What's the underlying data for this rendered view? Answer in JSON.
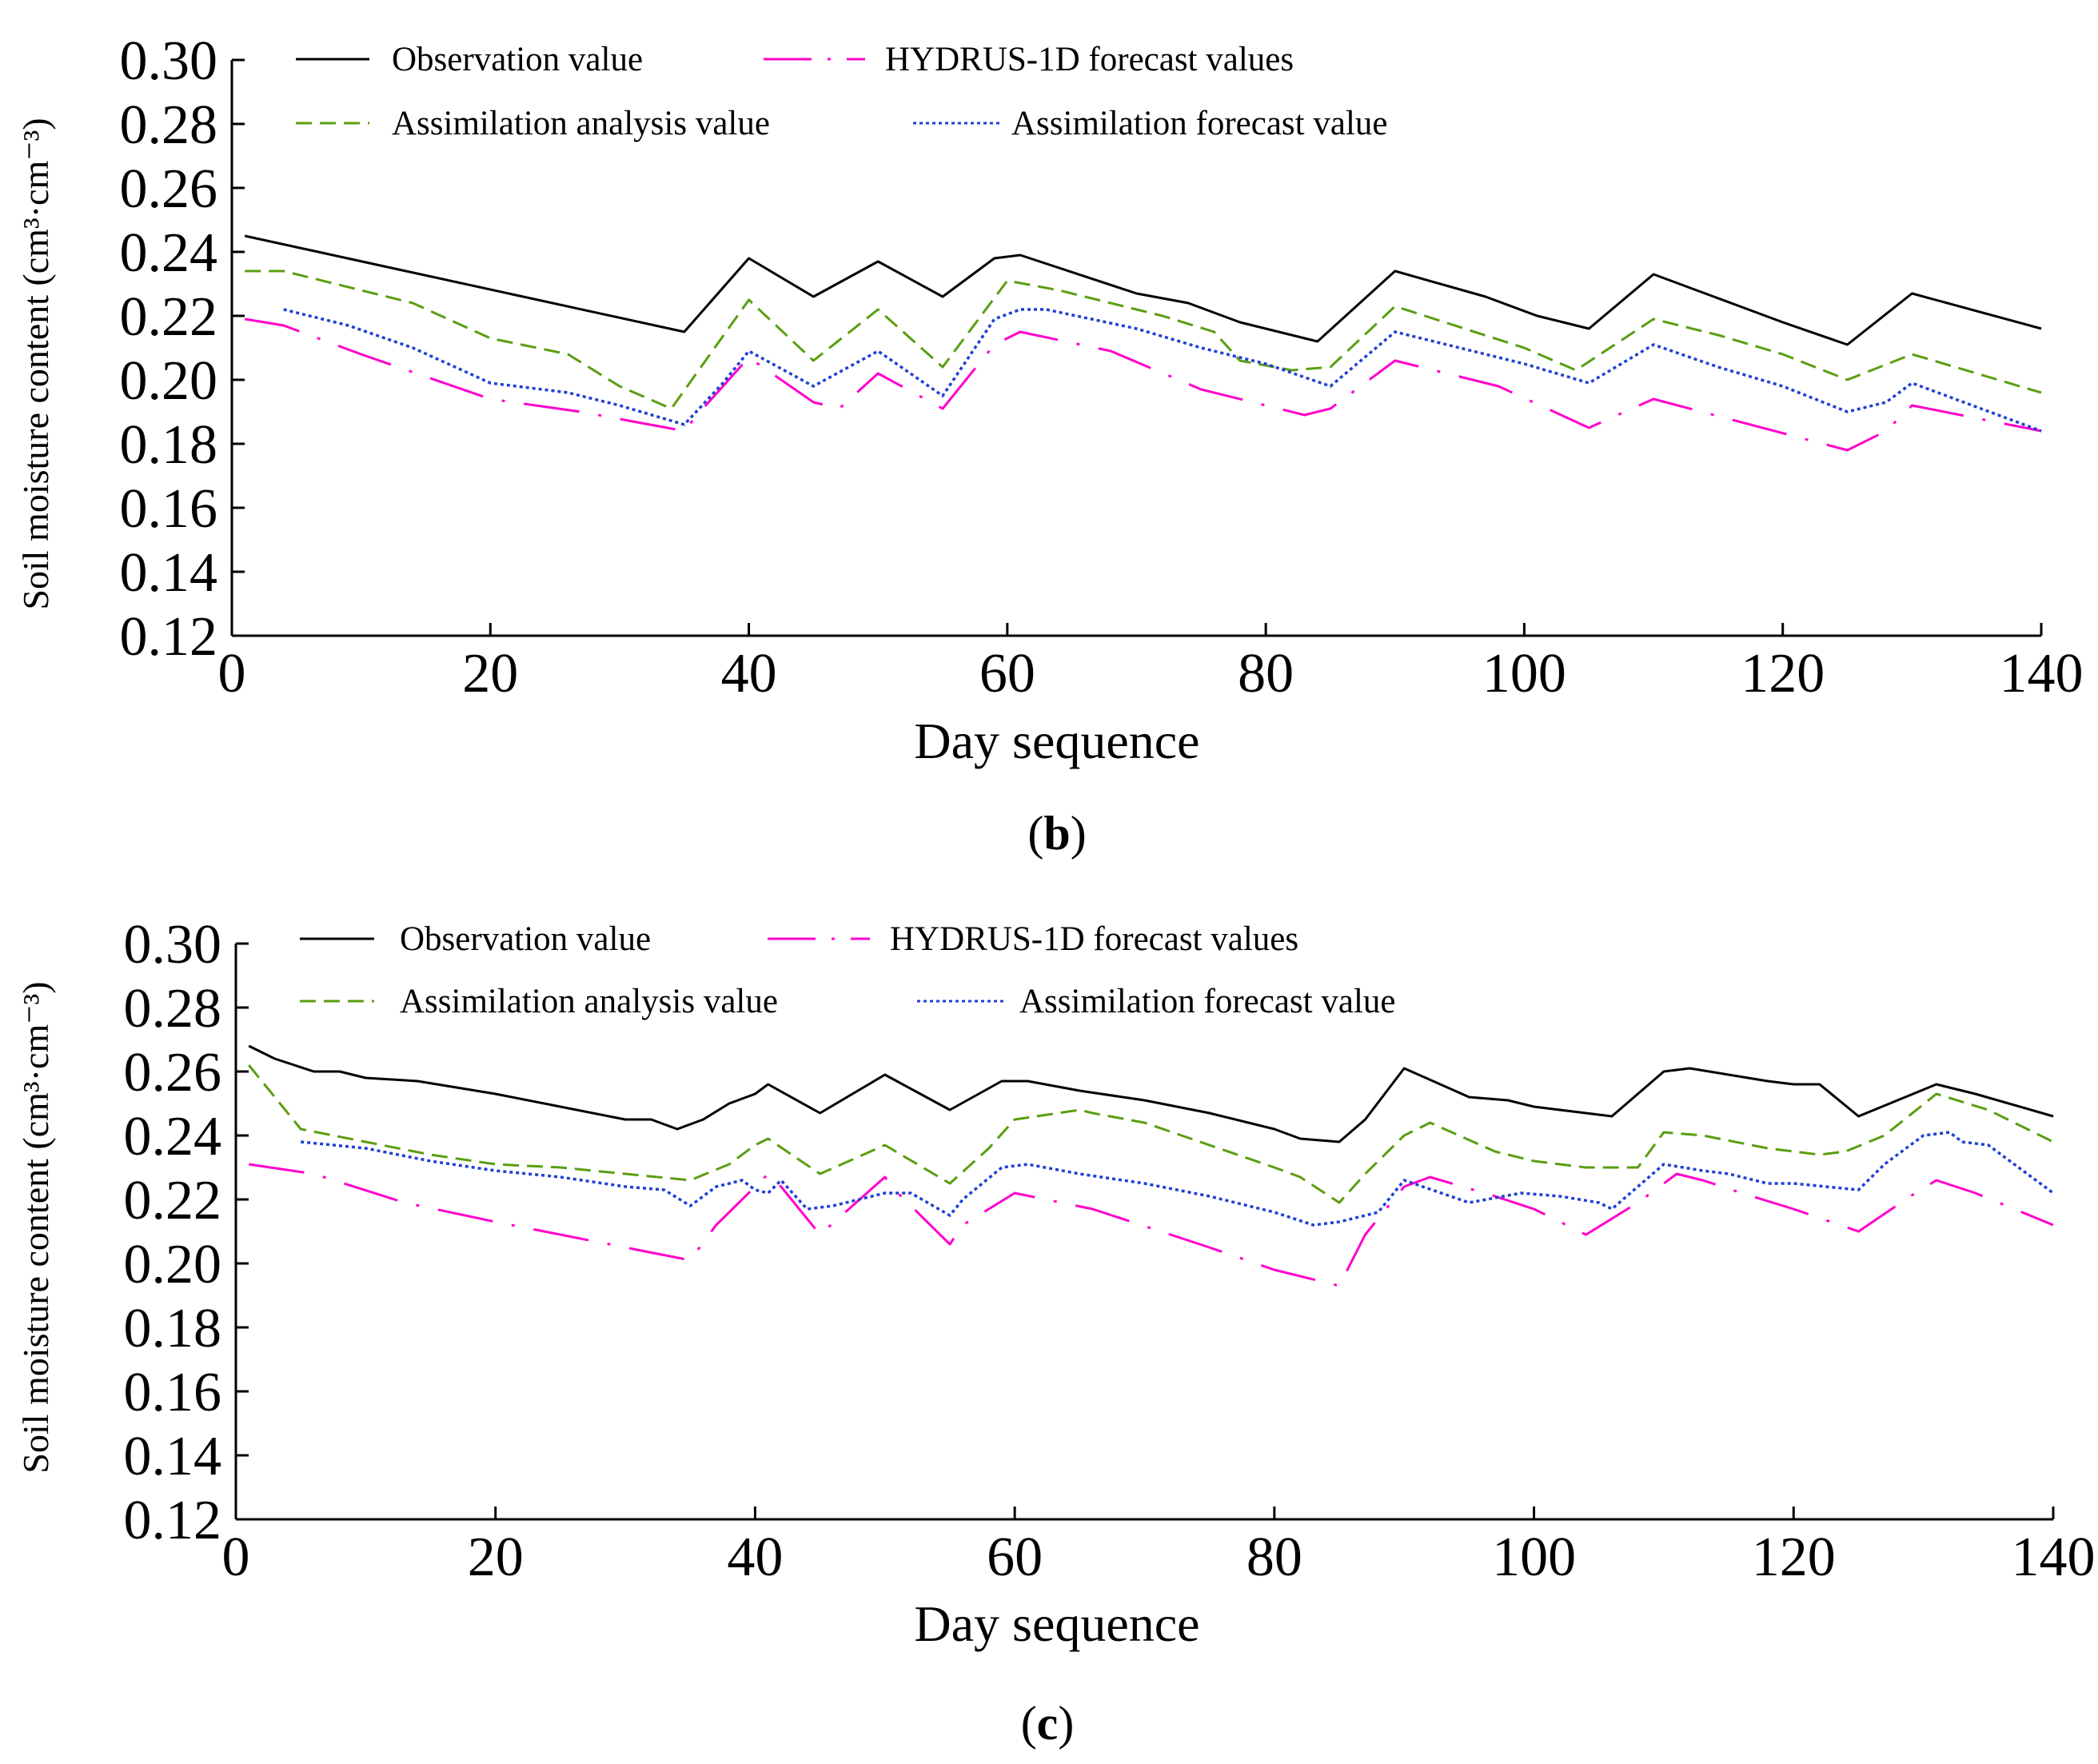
{
  "colors": {
    "observation": "#000000",
    "hydrus": "#ff00cc",
    "analysis": "#5a9e12",
    "assim_forecast": "#1f3fd6"
  },
  "chart_data": [
    {
      "panel_label": "b",
      "type": "line",
      "xlabel": "Day sequence",
      "ylabel": "Soil moisture content (cm³·cm⁻³)",
      "xlim": [
        0,
        140
      ],
      "ylim": [
        0.12,
        0.3
      ],
      "xticks": [
        "0",
        "20",
        "40",
        "60",
        "80",
        "100",
        "120",
        "140"
      ],
      "yticks": [
        "0.30",
        "0.28",
        "0.26",
        "0.24",
        "0.22",
        "0.20",
        "0.18",
        "0.16",
        "0.14",
        "0.12"
      ],
      "series": [
        {
          "name": "Observation value",
          "style": "solid",
          "color_key": "observation",
          "x": [
            1,
            35,
            40,
            45,
            50,
            55,
            59,
            61,
            70,
            74,
            78,
            84,
            90,
            97,
            101,
            105,
            110,
            114,
            120,
            125,
            130,
            140
          ],
          "y": [
            0.245,
            0.215,
            0.238,
            0.226,
            0.237,
            0.226,
            0.238,
            0.239,
            0.227,
            0.224,
            0.218,
            0.212,
            0.234,
            0.226,
            0.22,
            0.216,
            0.233,
            0.227,
            0.218,
            0.211,
            0.227,
            0.216
          ]
        },
        {
          "name": "HYDRUS-1D forecast values",
          "style": "dashdot",
          "color_key": "hydrus",
          "x": [
            1,
            4,
            10,
            20,
            27,
            35,
            36,
            40,
            45,
            47,
            50,
            55,
            59,
            61,
            68,
            75,
            83,
            85,
            90,
            98,
            105,
            110,
            125,
            128,
            130,
            140
          ],
          "y": [
            0.219,
            0.217,
            0.208,
            0.194,
            0.19,
            0.184,
            0.189,
            0.207,
            0.193,
            0.191,
            0.202,
            0.191,
            0.211,
            0.215,
            0.209,
            0.197,
            0.189,
            0.191,
            0.206,
            0.198,
            0.185,
            0.194,
            0.178,
            0.184,
            0.192,
            0.184
          ]
        },
        {
          "name": "Assimilation analysis value",
          "style": "dashed",
          "color_key": "analysis",
          "x": [
            1,
            4,
            10,
            14,
            20,
            26,
            30,
            34,
            40,
            45,
            50,
            55,
            60,
            64,
            72,
            76,
            78,
            82,
            85,
            90,
            100,
            104,
            110,
            115,
            120,
            125,
            130,
            140
          ],
          "y": [
            0.234,
            0.234,
            0.228,
            0.224,
            0.213,
            0.208,
            0.198,
            0.191,
            0.225,
            0.206,
            0.222,
            0.204,
            0.231,
            0.228,
            0.22,
            0.215,
            0.206,
            0.203,
            0.204,
            0.223,
            0.21,
            0.203,
            0.219,
            0.214,
            0.208,
            0.2,
            0.208,
            0.196
          ]
        },
        {
          "name": "Assimilation forecast value",
          "style": "dotted",
          "color_key": "assim_forecast",
          "x": [
            4,
            9,
            14,
            20,
            26,
            30,
            35,
            38,
            40,
            45,
            50,
            55,
            59,
            61,
            63,
            70,
            75,
            80,
            85,
            90,
            100,
            105,
            110,
            115,
            120,
            125,
            128,
            130,
            140
          ],
          "y": [
            0.222,
            0.217,
            0.21,
            0.199,
            0.196,
            0.192,
            0.186,
            0.199,
            0.209,
            0.198,
            0.209,
            0.195,
            0.219,
            0.222,
            0.222,
            0.216,
            0.21,
            0.205,
            0.198,
            0.215,
            0.205,
            0.199,
            0.211,
            0.204,
            0.198,
            0.19,
            0.193,
            0.199,
            0.184
          ]
        }
      ]
    },
    {
      "panel_label": "c",
      "type": "line",
      "xlabel": "Day sequence",
      "ylabel": "Soil moisture content (cm³·cm⁻³)",
      "xlim": [
        0,
        140
      ],
      "ylim": [
        0.12,
        0.3
      ],
      "xticks": [
        "0",
        "20",
        "40",
        "60",
        "80",
        "100",
        "120",
        "140"
      ],
      "yticks": [
        "0.30",
        "0.28",
        "0.26",
        "0.24",
        "0.22",
        "0.20",
        "0.18",
        "0.16",
        "0.14",
        "0.12"
      ],
      "series": [
        {
          "name": "Observation value",
          "style": "solid",
          "color_key": "observation",
          "x": [
            1,
            3,
            6,
            8,
            10,
            14,
            20,
            25,
            30,
            32,
            34,
            36,
            38,
            40,
            41,
            45,
            50,
            55,
            59,
            61,
            65,
            70,
            75,
            80,
            82,
            85,
            87,
            90,
            95,
            98,
            100,
            104,
            106,
            110,
            112,
            115,
            118,
            120,
            122,
            125,
            128,
            131,
            134,
            140
          ],
          "y": [
            0.268,
            0.264,
            0.26,
            0.26,
            0.258,
            0.257,
            0.253,
            0.249,
            0.245,
            0.245,
            0.242,
            0.245,
            0.25,
            0.253,
            0.256,
            0.247,
            0.259,
            0.248,
            0.257,
            0.257,
            0.254,
            0.251,
            0.247,
            0.242,
            0.239,
            0.238,
            0.245,
            0.261,
            0.252,
            0.251,
            0.249,
            0.247,
            0.246,
            0.26,
            0.261,
            0.259,
            0.257,
            0.256,
            0.256,
            0.246,
            0.251,
            0.256,
            0.253,
            0.246
          ]
        },
        {
          "name": "HYDRUS-1D forecast values",
          "style": "dashdot",
          "color_key": "hydrus",
          "x": [
            1,
            6,
            13,
            20,
            30,
            35,
            37,
            40,
            41,
            42,
            45,
            50,
            51,
            55,
            56,
            60,
            66,
            75,
            80,
            85,
            87,
            90,
            92,
            97,
            100,
            104,
            108,
            111,
            113,
            116,
            120,
            125,
            129,
            131,
            134,
            140
          ],
          "y": [
            0.231,
            0.228,
            0.219,
            0.213,
            0.205,
            0.201,
            0.212,
            0.224,
            0.228,
            0.224,
            0.209,
            0.227,
            0.222,
            0.206,
            0.212,
            0.222,
            0.217,
            0.205,
            0.198,
            0.193,
            0.209,
            0.224,
            0.227,
            0.221,
            0.217,
            0.209,
            0.219,
            0.228,
            0.226,
            0.222,
            0.217,
            0.21,
            0.221,
            0.226,
            0.222,
            0.212
          ]
        },
        {
          "name": "Assimilation analysis value",
          "style": "dashed",
          "color_key": "analysis",
          "x": [
            1,
            5,
            10,
            15,
            20,
            25,
            30,
            35,
            38,
            40,
            41,
            45,
            50,
            55,
            58,
            60,
            65,
            66,
            70,
            80,
            82,
            85,
            87,
            90,
            92,
            97,
            100,
            104,
            108,
            110,
            113,
            118,
            122,
            124,
            127,
            131,
            135,
            140
          ],
          "y": [
            0.262,
            0.242,
            0.238,
            0.234,
            0.231,
            0.23,
            0.228,
            0.226,
            0.231,
            0.237,
            0.239,
            0.228,
            0.237,
            0.225,
            0.236,
            0.245,
            0.248,
            0.247,
            0.244,
            0.23,
            0.227,
            0.219,
            0.228,
            0.24,
            0.244,
            0.235,
            0.232,
            0.23,
            0.23,
            0.241,
            0.24,
            0.236,
            0.234,
            0.235,
            0.24,
            0.253,
            0.248,
            0.238
          ]
        },
        {
          "name": "Assimilation forecast value",
          "style": "dotted",
          "color_key": "assim_forecast",
          "x": [
            5,
            10,
            15,
            20,
            25,
            30,
            33,
            35,
            37,
            39,
            40,
            41,
            42,
            44,
            46,
            50,
            52,
            55,
            56,
            59,
            61,
            65,
            70,
            75,
            80,
            83,
            85,
            88,
            90,
            95,
            99,
            102,
            105,
            106,
            110,
            113,
            115,
            118,
            120,
            125,
            127,
            130,
            132,
            133,
            135,
            140
          ],
          "y": [
            0.238,
            0.236,
            0.232,
            0.229,
            0.227,
            0.224,
            0.223,
            0.218,
            0.224,
            0.226,
            0.223,
            0.222,
            0.226,
            0.217,
            0.218,
            0.222,
            0.222,
            0.215,
            0.22,
            0.23,
            0.231,
            0.228,
            0.225,
            0.221,
            0.216,
            0.212,
            0.213,
            0.216,
            0.226,
            0.219,
            0.222,
            0.221,
            0.219,
            0.217,
            0.231,
            0.229,
            0.228,
            0.225,
            0.225,
            0.223,
            0.231,
            0.24,
            0.241,
            0.238,
            0.237,
            0.222
          ]
        }
      ]
    }
  ]
}
